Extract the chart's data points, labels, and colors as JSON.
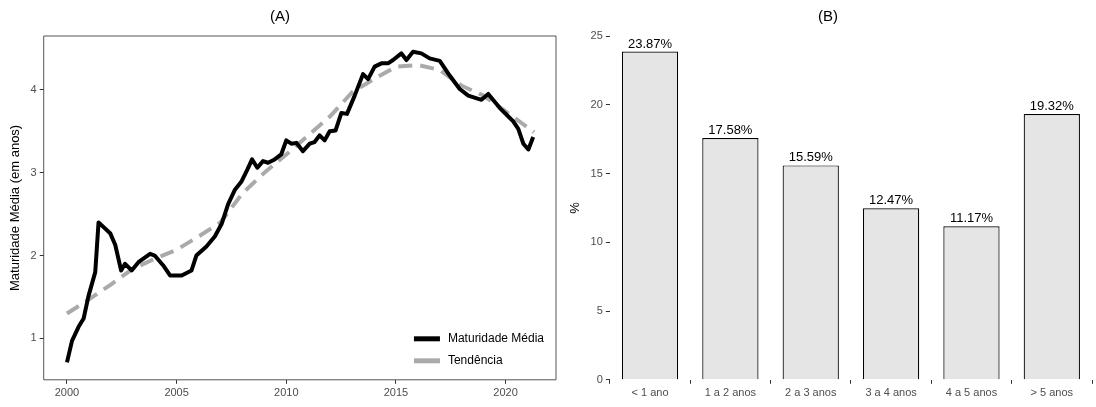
{
  "chart_data": [
    {
      "type": "line",
      "title": "(A)",
      "ylabel": "Maturidade Média (em anos)",
      "xlim": [
        1998.94,
        2022.3
      ],
      "xticks": [
        2000,
        2005,
        2010,
        2015,
        2020
      ],
      "ylim": [
        0.5,
        4.65
      ],
      "yticks": [
        1,
        2,
        3,
        4
      ],
      "grid": false,
      "legend": "bottom right",
      "marker": "none",
      "series": [
        {
          "name": "Maturidade Média",
          "color": "#000000",
          "line_style": "solid",
          "x": [
            2000,
            2000.23,
            2000.53,
            2000.76,
            2000.98,
            2001.29,
            2001.44,
            2001.97,
            2002.2,
            2002.47,
            2002.65,
            2002.95,
            2003.26,
            2003.79,
            2004.0,
            2004.39,
            2004.7,
            2005.23,
            2005.68,
            2005.9,
            2006.36,
            2006.74,
            2007.05,
            2007.35,
            2007.65,
            2007.95,
            2008.23,
            2008.44,
            2008.68,
            2008.94,
            2009.17,
            2009.47,
            2009.77,
            2010.0,
            2010.23,
            2010.46,
            2010.76,
            2011.07,
            2011.29,
            2011.52,
            2011.75,
            2011.98,
            2012.25,
            2012.51,
            2012.77,
            2013.12,
            2013.5,
            2013.73,
            2014.03,
            2014.34,
            2014.64,
            2014.87,
            2015.25,
            2015.48,
            2015.78,
            2016.16,
            2016.54,
            2017.0,
            2017.46,
            2017.91,
            2018.3,
            2018.9,
            2019.21,
            2019.74,
            2020.35,
            2020.58,
            2020.81,
            2021.04,
            2021.26
          ],
          "values": [
            0.71,
            0.97,
            1.14,
            1.24,
            1.51,
            1.8,
            2.4,
            2.27,
            2.13,
            1.82,
            1.9,
            1.82,
            1.92,
            2.02,
            2.0,
            1.88,
            1.76,
            1.76,
            1.82,
            2.0,
            2.11,
            2.23,
            2.38,
            2.62,
            2.79,
            2.89,
            3.04,
            3.16,
            3.06,
            3.14,
            3.12,
            3.16,
            3.22,
            3.39,
            3.35,
            3.36,
            3.26,
            3.35,
            3.37,
            3.45,
            3.39,
            3.5,
            3.51,
            3.72,
            3.71,
            3.93,
            4.19,
            4.13,
            4.28,
            4.32,
            4.32,
            4.36,
            4.44,
            4.36,
            4.46,
            4.44,
            4.38,
            4.35,
            4.17,
            4.01,
            3.93,
            3.88,
            3.95,
            3.78,
            3.62,
            3.53,
            3.35,
            3.28,
            3.43
          ]
        },
        {
          "name": "Tendência",
          "color": "#aaaaaa",
          "line_style": "dashed",
          "x": [
            2000,
            2001,
            2002,
            2003,
            2004,
            2005,
            2006,
            2007,
            2008,
            2009,
            2010,
            2011,
            2012,
            2013,
            2014,
            2015,
            2016,
            2017,
            2018,
            2019,
            2020,
            2021.3
          ],
          "values": [
            1.3,
            1.47,
            1.65,
            1.84,
            1.96,
            2.07,
            2.23,
            2.4,
            2.75,
            3.0,
            3.22,
            3.45,
            3.68,
            3.97,
            4.13,
            4.28,
            4.3,
            4.24,
            4.05,
            3.93,
            3.74,
            3.49
          ]
        }
      ]
    },
    {
      "type": "bar",
      "title": "(B)",
      "ylabel": "%",
      "categories": [
        "< 1 ano",
        "1 a 2 anos",
        "2 a 3 anos",
        "3 a 4 anos",
        "4 a 5 anos",
        "> 5 anos"
      ],
      "ylim": [
        0,
        25
      ],
      "yticks": [
        0,
        5,
        10,
        15,
        20,
        25
      ],
      "grid": false,
      "series": [
        {
          "color": "#e5e5e5",
          "values": [
            23.87,
            17.58,
            15.59,
            12.47,
            11.17,
            19.32
          ],
          "value_labels": [
            "23.87%",
            "17.58%",
            "15.59%",
            "12.47%",
            "11.17%",
            "19.32%"
          ]
        }
      ]
    }
  ]
}
